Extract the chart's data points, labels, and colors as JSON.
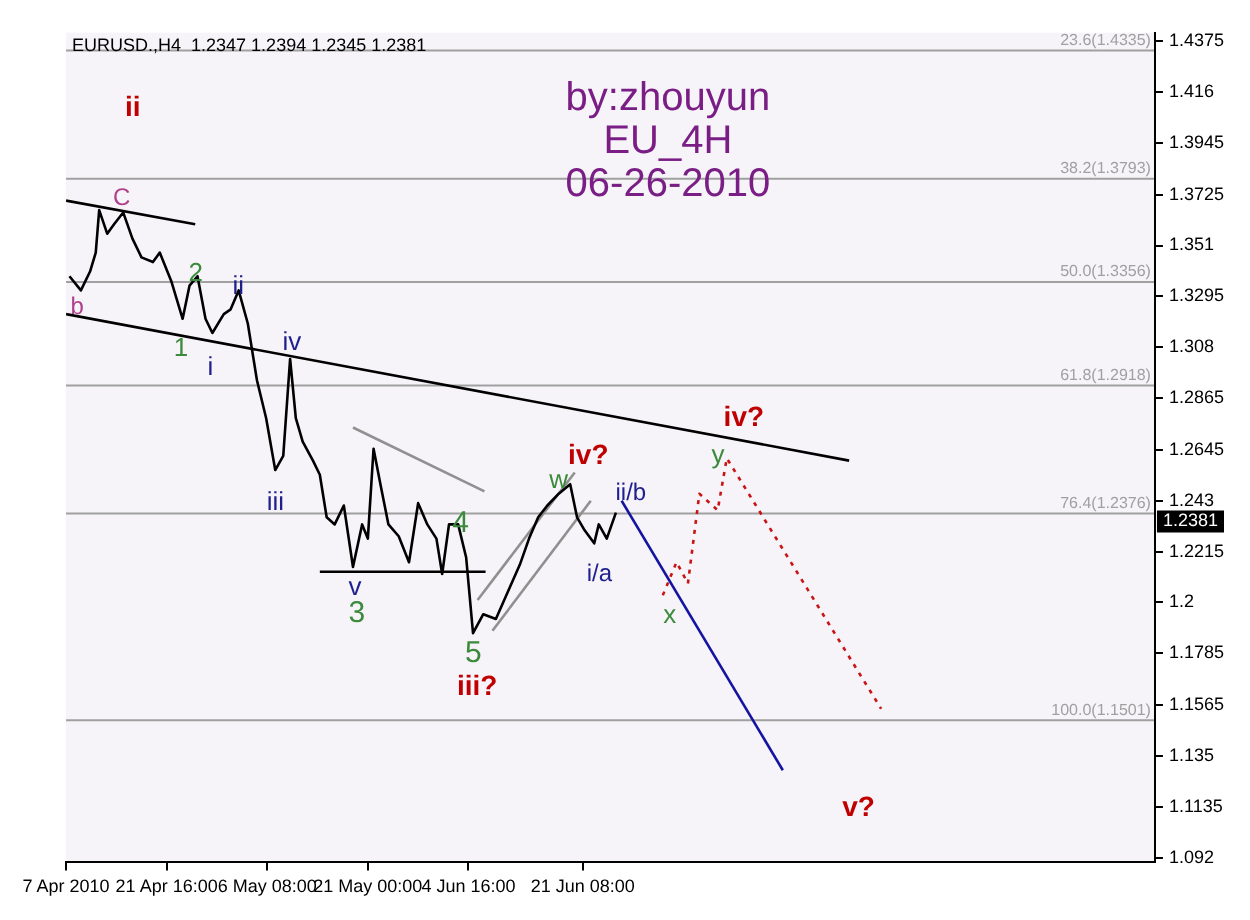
{
  "chart_data": {
    "type": "line",
    "title": "EURUSD.,H4  1.2347 1.2394 1.2345 1.2381",
    "marker": "none",
    "xlim": [
      "2010-04-07",
      "2010-09-12T18:00"
    ],
    "xticks": [
      {
        "value": "2010-04-07",
        "label": "7 Apr 2010"
      },
      {
        "value": "2010-04-21T16:00",
        "label": "21 Apr 16:00"
      },
      {
        "value": "2010-05-06T08:00",
        "label": "6 May 08:00"
      },
      {
        "value": "2010-05-21T00:00",
        "label": "21 May 00:00"
      },
      {
        "value": "2010-06-04T16:00",
        "label": "4 Jun 16:00"
      },
      {
        "value": "2010-06-21T08:00",
        "label": "21 Jun 08:00"
      }
    ],
    "ylim": [
      1.09,
      1.441
    ],
    "yticks": [
      1.4375,
      1.416,
      1.3945,
      1.3725,
      1.351,
      1.3295,
      1.308,
      1.2865,
      1.2645,
      1.243,
      1.2215,
      1.2,
      1.1785,
      1.1565,
      1.135,
      1.1135,
      1.092
    ],
    "series": [
      {
        "color": "#000000",
        "line_style": "solid",
        "x": [
          "2010-04-07T12:00",
          "2010-04-09T04:00",
          "2010-04-10T12:00",
          "2010-04-11T08:00",
          "2010-04-11T20:00",
          "2010-04-13T00:00",
          "2010-04-14T00:00",
          "2010-04-15T08:00",
          "2010-04-16T16:00",
          "2010-04-18T00:00",
          "2010-04-19T16:00",
          "2010-04-20T16:00",
          "2010-04-22T08:00",
          "2010-04-24T00:00",
          "2010-04-25T00:00",
          "2010-04-26T04:00",
          "2010-04-27T08:00",
          "2010-04-28T08:00",
          "2010-04-30T00:00",
          "2010-05-01T00:00",
          "2010-05-02T04:00",
          "2010-05-03T12:00",
          "2010-05-04T20:00",
          "2010-05-06T04:00",
          "2010-05-07T12:00",
          "2010-05-08T16:00",
          "2010-05-09T16:00",
          "2010-05-10T12:00",
          "2010-05-11T12:00",
          "2010-05-13T00:00",
          "2010-05-14T00:00",
          "2010-05-15T00:00",
          "2010-05-16T04:00",
          "2010-05-17T12:00",
          "2010-05-18T20:00",
          "2010-05-20T04:00",
          "2010-05-21T00:00",
          "2010-05-21T20:00",
          "2010-05-22T20:00",
          "2010-05-24T00:00",
          "2010-05-25T12:00",
          "2010-05-27T00:00",
          "2010-05-28T08:00",
          "2010-05-29T16:00",
          "2010-05-31T00:00",
          "2010-05-31T20:00",
          "2010-06-01T20:00",
          "2010-06-03T04:00",
          "2010-06-04T08:00",
          "2010-06-05T08:00",
          "2010-06-06T20:00",
          "2010-06-08T16:00",
          "2010-06-10T08:00",
          "2010-06-12T04:00",
          "2010-06-13T12:00",
          "2010-06-14T20:00",
          "2010-06-16T04:00",
          "2010-06-17T20:00",
          "2010-06-19T12:00",
          "2010-06-20T12:00",
          "2010-06-21T12:00",
          "2010-06-23T00:00",
          "2010-06-23T16:00",
          "2010-06-24T20:00",
          "2010-06-26T04:00"
        ],
        "values": [
          1.338,
          1.332,
          1.34,
          1.348,
          1.366,
          1.356,
          1.36,
          1.365,
          1.354,
          1.346,
          1.344,
          1.348,
          1.336,
          1.32,
          1.334,
          1.338,
          1.32,
          1.314,
          1.322,
          1.324,
          1.332,
          1.318,
          1.294,
          1.278,
          1.256,
          1.262,
          1.303,
          1.278,
          1.268,
          1.26,
          1.254,
          1.236,
          1.233,
          1.241,
          1.215,
          1.233,
          1.227,
          1.265,
          1.25,
          1.233,
          1.228,
          1.217,
          1.242,
          1.233,
          1.227,
          1.212,
          1.233,
          1.233,
          1.219,
          1.187,
          1.195,
          1.193,
          1.204,
          1.216,
          1.227,
          1.236,
          1.241,
          1.246,
          1.25,
          1.236,
          1.231,
          1.225,
          1.233,
          1.227,
          1.238
        ]
      },
      {
        "color": "#000000",
        "line_style": "solid",
        "x": [
          "2010-04-07",
          "2010-04-25T20:00"
        ],
        "values": [
          1.37,
          1.36
        ]
      },
      {
        "color": "#000000",
        "line_style": "solid",
        "x": [
          "2010-04-07",
          "2010-07-30T04:00"
        ],
        "values": [
          1.322,
          1.26
        ]
      },
      {
        "color": "#909090",
        "line_style": "solid",
        "x": [
          "2010-05-18T20:00",
          "2010-06-07T00:00"
        ],
        "values": [
          1.274,
          1.247
        ]
      },
      {
        "color": "#000000",
        "line_style": "solid",
        "x": [
          "2010-05-14T00:00",
          "2010-06-07T04:00"
        ],
        "values": [
          1.213,
          1.213
        ]
      },
      {
        "color": "#909090",
        "line_style": "solid",
        "x": [
          "2010-06-06T00:00",
          "2010-06-20T04:00"
        ],
        "values": [
          1.201,
          1.255
        ]
      },
      {
        "color": "#909090",
        "line_style": "solid",
        "x": [
          "2010-06-08T04:00",
          "2010-06-22T12:00"
        ],
        "values": [
          1.188,
          1.243
        ]
      },
      {
        "color": "#1414a0",
        "line_style": "solid",
        "x": [
          "2010-06-27T00:00",
          "2010-07-20T12:00"
        ],
        "values": [
          1.243,
          1.129
        ]
      },
      {
        "color": "#c81414",
        "line_style": "dotted",
        "x": [
          "2010-07-03T00:00",
          "2010-07-05T00:00",
          "2010-07-06T16:00",
          "2010-07-08T08:00",
          "2010-07-11T00:00",
          "2010-07-12T08:00",
          "2010-08-03T20:00"
        ],
        "values": [
          1.203,
          1.217,
          1.208,
          1.246,
          1.239,
          1.261,
          1.155
        ]
      }
    ],
    "ref_lines": [
      {
        "axis": "y",
        "value": 1.4335,
        "label": "23.6(1.4335)",
        "color": "#a0a0a0"
      },
      {
        "axis": "y",
        "value": 1.3793,
        "label": "38.2(1.3793)",
        "color": "#a0a0a0"
      },
      {
        "axis": "y",
        "value": 1.3356,
        "label": "50.0(1.3356)",
        "color": "#a0a0a0"
      },
      {
        "axis": "y",
        "value": 1.2918,
        "label": "61.8(1.2918)",
        "color": "#a0a0a0"
      },
      {
        "axis": "y",
        "value": 1.2376,
        "label": "76.4(1.2376)",
        "color": "#a0a0a0"
      },
      {
        "axis": "y",
        "value": 1.1501,
        "label": "100.0(1.1501)",
        "color": "#a0a0a0"
      }
    ],
    "annotations": [
      "by:zhouyun",
      "EU_4H",
      "06-26-2010",
      "ii",
      "C",
      "b",
      "2",
      "1",
      "i",
      "ii",
      "iv",
      "iii",
      "v",
      "3",
      "4",
      "5",
      "iii?",
      "w",
      "iv?",
      "ii/b",
      "i/a",
      "x",
      "y",
      "iv?",
      "v?",
      "1.2381"
    ]
  }
}
